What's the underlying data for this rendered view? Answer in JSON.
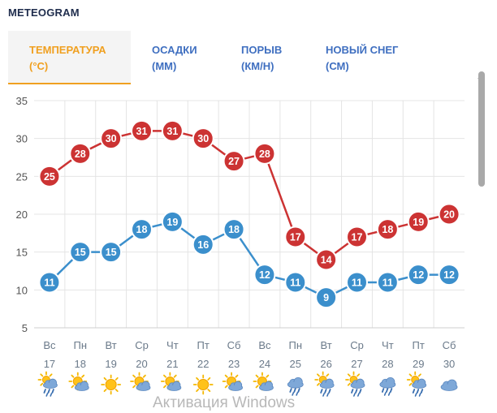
{
  "header": {
    "title": "METEOGRAM"
  },
  "tabs": [
    {
      "line1": "ТЕМПЕРАТУРА",
      "line2": "(°C)",
      "active": true
    },
    {
      "line1": "ОСАДКИ",
      "line2": "(ММ)",
      "active": false
    },
    {
      "line1": "ПОРЫВ",
      "line2": "(КМ/Н)",
      "active": false
    },
    {
      "line1": "НОВЫЙ СНЕГ",
      "line2": "(СМ)",
      "active": false
    }
  ],
  "watermark": "Активация Windows",
  "colors": {
    "max": "#cc3333",
    "min": "#3b8fcc",
    "axis_text": "#555555",
    "day_text": "#6b7a8a",
    "grid": "#e4e4e4",
    "accent": "#f0a020",
    "tab_text": "#3f6fc0"
  },
  "chart_data": {
    "type": "line",
    "title": "",
    "xlabel": "",
    "ylabel": "",
    "ylim": [
      5,
      35
    ],
    "yticks": [
      5,
      10,
      15,
      20,
      25,
      30,
      35
    ],
    "grid": true,
    "weekdays": [
      "Вс",
      "Пн",
      "Вт",
      "Ср",
      "Чт",
      "Пт",
      "Сб",
      "Вс",
      "Пн",
      "Вт",
      "Ср",
      "Чт",
      "Пт",
      "Сб"
    ],
    "days": [
      "17",
      "18",
      "19",
      "20",
      "21",
      "22",
      "23",
      "24",
      "25",
      "26",
      "27",
      "28",
      "29",
      "30"
    ],
    "icons": [
      "sun-cloud-rain-icon",
      "sun-cloud-icon",
      "sun-icon",
      "sun-cloud-icon",
      "sun-cloud-icon",
      "sun-icon",
      "sun-cloud-icon",
      "sun-cloud-icon",
      "cloud-rain-icon",
      "sun-cloud-rain-icon",
      "sun-cloud-rain-icon",
      "cloud-rain-icon",
      "sun-cloud-rain-icon",
      "cloud-icon"
    ],
    "series": [
      {
        "values": [
          25,
          28,
          30,
          31,
          31,
          30,
          27,
          28,
          17,
          14,
          17,
          18,
          19,
          20
        ]
      },
      {
        "values": [
          11,
          15,
          15,
          18,
          19,
          16,
          18,
          12,
          11,
          9,
          11,
          11,
          12,
          12
        ]
      }
    ]
  }
}
